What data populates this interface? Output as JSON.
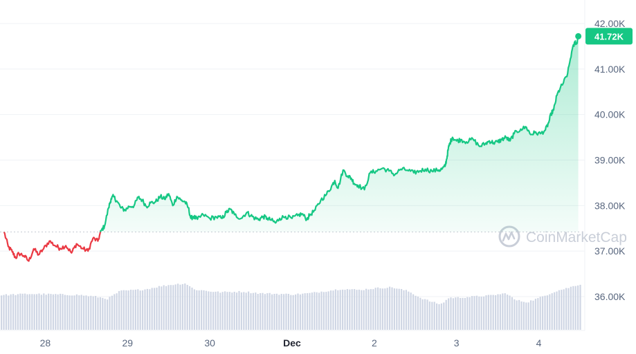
{
  "chart_data": {
    "type": "line",
    "title": "",
    "xlabel": "",
    "ylabel": "",
    "ylim": [
      35.0,
      42.3
    ],
    "y_unit": "K",
    "yticks": [
      "42.00K",
      "41.00K",
      "40.00K",
      "39.00K",
      "38.00K",
      "37.00K",
      "36.00K"
    ],
    "ytick_values": [
      42,
      41,
      40,
      39,
      38,
      37,
      36
    ],
    "xticks": [
      {
        "label": "28",
        "t": 0.5,
        "bold": false
      },
      {
        "label": "29",
        "t": 1.5,
        "bold": false
      },
      {
        "label": "30",
        "t": 2.5,
        "bold": false
      },
      {
        "label": "Dec",
        "t": 3.5,
        "bold": true
      },
      {
        "label": "2",
        "t": 4.5,
        "bold": false
      },
      {
        "label": "3",
        "t": 5.5,
        "bold": false
      },
      {
        "label": "4",
        "t": 6.5,
        "bold": false
      }
    ],
    "reference_price": 37.42,
    "current_price": 41.72,
    "current_price_label": "41.72K",
    "price_series": {
      "t": [
        0.0,
        0.05,
        0.1,
        0.14,
        0.18,
        0.24,
        0.3,
        0.36,
        0.42,
        0.48,
        0.55,
        0.62,
        0.68,
        0.75,
        0.82,
        0.88,
        0.95,
        1.02,
        1.08,
        1.14,
        1.18,
        1.22,
        1.27,
        1.3,
        1.33,
        1.37,
        1.42,
        1.47,
        1.52,
        1.58,
        1.63,
        1.68,
        1.73,
        1.78,
        1.84,
        1.9,
        1.95,
        2.0,
        2.05,
        2.1,
        2.15,
        2.2,
        2.24,
        2.27,
        2.3,
        2.35,
        2.42,
        2.5,
        2.58,
        2.65,
        2.7,
        2.75,
        2.8,
        2.88,
        2.95,
        3.0,
        3.05,
        3.1,
        3.15,
        3.2,
        3.25,
        3.3,
        3.35,
        3.42,
        3.5,
        3.57,
        3.62,
        3.68,
        3.72,
        3.78,
        3.85,
        3.92,
        3.98,
        4.02,
        4.06,
        4.12,
        4.18,
        4.22,
        4.26,
        4.3,
        4.38,
        4.45,
        4.52,
        4.6,
        4.68,
        4.75,
        4.82,
        4.9,
        4.98,
        5.05,
        5.12,
        5.2,
        5.28,
        5.32,
        5.36,
        5.38,
        5.4,
        5.42,
        5.45,
        5.5,
        5.55,
        5.62,
        5.7,
        5.78,
        5.85,
        5.9,
        5.95,
        6.0,
        6.05,
        6.1,
        6.15,
        6.2,
        6.28,
        6.35,
        6.4,
        6.45,
        6.52,
        6.58,
        6.62,
        6.65,
        6.68,
        6.72,
        6.76,
        6.8,
        6.85,
        6.9,
        6.94,
        6.96,
        6.98
      ],
      "y": [
        37.42,
        37.1,
        36.98,
        36.85,
        36.95,
        36.9,
        36.78,
        37.05,
        36.92,
        37.05,
        37.22,
        37.12,
        37.06,
        37.12,
        36.96,
        37.16,
        37.06,
        37.0,
        37.28,
        37.22,
        37.45,
        37.55,
        37.95,
        38.15,
        38.2,
        38.1,
        37.95,
        37.9,
        37.98,
        38.0,
        38.18,
        38.12,
        37.98,
        38.06,
        38.08,
        38.2,
        38.14,
        38.26,
        38.0,
        38.2,
        38.12,
        38.08,
        37.95,
        37.72,
        37.76,
        37.7,
        37.8,
        37.72,
        37.75,
        37.72,
        37.85,
        37.92,
        37.8,
        37.72,
        37.85,
        37.78,
        37.72,
        37.7,
        37.76,
        37.72,
        37.68,
        37.62,
        37.72,
        37.76,
        37.72,
        37.78,
        37.82,
        37.7,
        37.8,
        37.9,
        38.12,
        38.25,
        38.42,
        38.55,
        38.38,
        38.78,
        38.65,
        38.6,
        38.48,
        38.45,
        38.35,
        38.72,
        38.76,
        38.82,
        38.76,
        38.68,
        38.8,
        38.78,
        38.72,
        38.76,
        38.8,
        38.76,
        38.78,
        38.8,
        38.86,
        39.02,
        39.25,
        39.38,
        39.5,
        39.42,
        39.45,
        39.4,
        39.46,
        39.3,
        39.36,
        39.42,
        39.38,
        39.4,
        39.45,
        39.5,
        39.42,
        39.58,
        39.68,
        39.72,
        39.56,
        39.6,
        39.58,
        39.66,
        39.82,
        40.02,
        40.1,
        40.42,
        40.58,
        40.7,
        40.9,
        41.38,
        41.6,
        41.55,
        41.72
      ],
      "tail_noise": 0.05
    },
    "volume_series": {
      "t": [
        0.0,
        0.3,
        0.6,
        0.9,
        1.1,
        1.25,
        1.4,
        1.7,
        1.9,
        2.05,
        2.2,
        2.3,
        2.6,
        2.9,
        3.1,
        3.3,
        3.5,
        3.7,
        3.9,
        4.1,
        4.3,
        4.5,
        4.7,
        4.9,
        5.05,
        5.2,
        5.3,
        5.4,
        5.5,
        5.7,
        5.9,
        6.1,
        6.2,
        6.35,
        6.5,
        6.7,
        6.85,
        6.98
      ],
      "v": [
        0.63,
        0.65,
        0.64,
        0.63,
        0.6,
        0.56,
        0.7,
        0.73,
        0.79,
        0.82,
        0.84,
        0.73,
        0.68,
        0.69,
        0.66,
        0.65,
        0.64,
        0.66,
        0.7,
        0.74,
        0.72,
        0.75,
        0.77,
        0.7,
        0.58,
        0.5,
        0.46,
        0.58,
        0.58,
        0.6,
        0.62,
        0.66,
        0.54,
        0.5,
        0.58,
        0.7,
        0.76,
        0.82
      ]
    },
    "grid": true,
    "legend": "none",
    "colors": {
      "up": "#16c784",
      "down": "#ea3943",
      "volume": "#cfd6e4",
      "grid": "#eff2f5",
      "reference_line": "#c4c9d2",
      "axis_text": "#58667e",
      "price_tag": "#16c784"
    }
  },
  "watermark": {
    "text": "CoinMarketCap",
    "icon": "coinmarketcap-logo-icon"
  }
}
